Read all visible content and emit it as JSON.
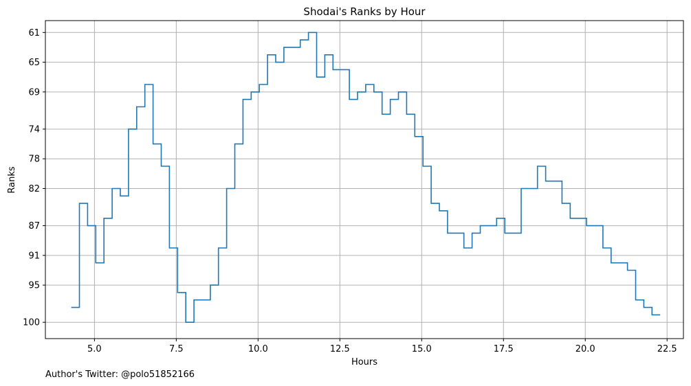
{
  "chart_data": {
    "type": "line",
    "drawstyle": "steps-post",
    "title": "Shodai's Ranks by Hour",
    "xlabel": "Hours",
    "ylabel": "Ranks",
    "xlim": [
      3.5,
      23.0
    ],
    "ylim": [
      102.2,
      59.4
    ],
    "y_inverted": true,
    "grid": true,
    "line_color": "#1f77b4",
    "x_ticks": [
      5.0,
      7.5,
      10.0,
      12.5,
      15.0,
      17.5,
      20.0,
      22.5
    ],
    "x_tick_labels": [
      "5.0",
      "7.5",
      "10.0",
      "12.5",
      "15.0",
      "17.5",
      "20.0",
      "22.5"
    ],
    "y_ticks": [
      61,
      65,
      69,
      74,
      78,
      82,
      87,
      91,
      95,
      100
    ],
    "y_tick_labels": [
      "61",
      "65",
      "69",
      "74",
      "78",
      "82",
      "87",
      "91",
      "95",
      "100"
    ],
    "series": [
      {
        "x": [
          4.29,
          4.54,
          4.79,
          5.04,
          5.29,
          5.54,
          5.79,
          6.04,
          6.29,
          6.54,
          6.79,
          7.04,
          7.29,
          7.54,
          7.79,
          8.04,
          8.29,
          8.54,
          8.79,
          9.04,
          9.29,
          9.54,
          9.79,
          10.04,
          10.29,
          10.54,
          10.79,
          11.04,
          11.29,
          11.54,
          11.79,
          12.04,
          12.29,
          12.54,
          12.79,
          13.04,
          13.29,
          13.54,
          13.79,
          14.04,
          14.29,
          14.54,
          14.79,
          15.04,
          15.29,
          15.54,
          15.79,
          16.04,
          16.29,
          16.54,
          16.79,
          17.04,
          17.29,
          17.54,
          17.79,
          18.04,
          18.29,
          18.54,
          18.79,
          19.04,
          19.29,
          19.54,
          19.79,
          20.04,
          20.29,
          20.54,
          20.79,
          21.04,
          21.29,
          21.54,
          21.79,
          22.04,
          22.29
        ],
        "y": [
          98,
          84,
          87,
          92,
          86,
          82,
          83,
          74,
          71,
          68,
          76,
          79,
          90,
          96,
          100,
          97,
          97,
          95,
          90,
          82,
          76,
          70,
          69,
          68,
          64,
          65,
          63,
          63,
          62,
          61,
          67,
          64,
          66,
          66,
          70,
          69,
          68,
          69,
          72,
          70,
          69,
          72,
          75,
          79,
          84,
          85,
          88,
          88,
          90,
          88,
          87,
          87,
          86,
          88,
          88,
          82,
          82,
          79,
          81,
          81,
          84,
          86,
          86,
          87,
          87,
          90,
          92,
          92,
          93,
          97,
          98,
          99,
          99
        ]
      }
    ]
  },
  "footer": {
    "text": "Author's Twitter: @polo51852166"
  }
}
